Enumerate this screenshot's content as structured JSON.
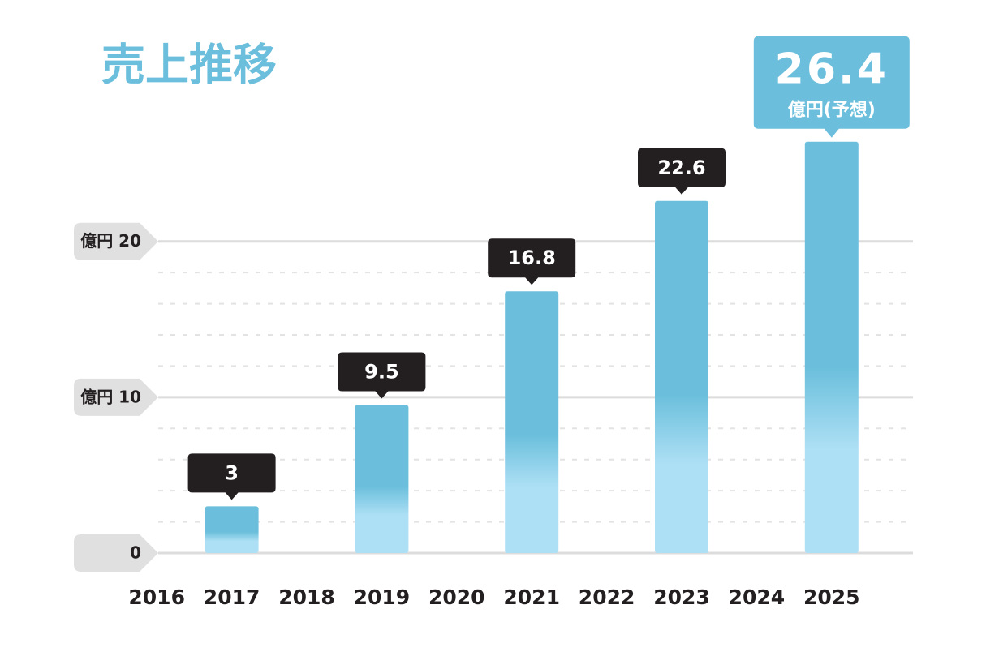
{
  "chart_data": {
    "type": "bar",
    "title": "売上推移",
    "categories": [
      "2016",
      "2017",
      "2018",
      "2019",
      "2020",
      "2021",
      "2022",
      "2023",
      "2024",
      "2025"
    ],
    "values": [
      null,
      3,
      null,
      9.5,
      null,
      16.8,
      null,
      22.6,
      null,
      26.4
    ],
    "color": "#6bbfdc",
    "color_light": "#aee0f5",
    "label_color": "#231f20",
    "highlight_color": "#6bbfdc",
    "forecast_label": "億円(予想)",
    "ylim": [
      0,
      28
    ],
    "yticks": [
      0,
      {
        "value": 10,
        "label": "億円 10"
      },
      {
        "value": 20,
        "label": "億円 20"
      }
    ],
    "minor_yticks": [
      2,
      4,
      6,
      8,
      12,
      14,
      16,
      18
    ],
    "grid": true
  }
}
